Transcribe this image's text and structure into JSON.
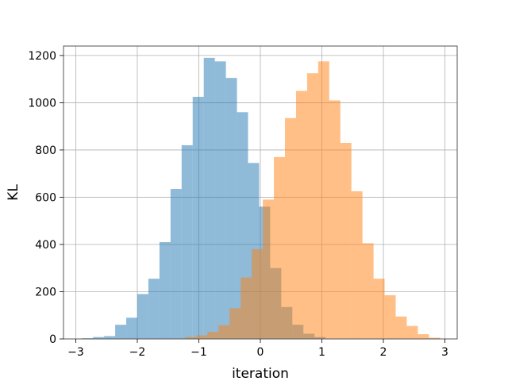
{
  "chart_data": {
    "type": "bar",
    "title": "",
    "xlabel": "iteration",
    "ylabel": "KL",
    "xlim": [
      -3.2,
      3.2
    ],
    "ylim": [
      0,
      1240
    ],
    "grid": true,
    "xticks": [
      -3,
      -2,
      -1,
      0,
      1,
      2,
      3
    ],
    "xtick_labels": [
      "−3",
      "−2",
      "−1",
      "0",
      "1",
      "2",
      "3"
    ],
    "yticks": [
      0,
      200,
      400,
      600,
      800,
      1000,
      1200
    ],
    "ytick_labels": [
      "0",
      "200",
      "400",
      "600",
      "800",
      "1000",
      "1200"
    ],
    "series": [
      {
        "color": "#1f77b4",
        "alpha": 0.5,
        "bin_edges": [
          -2.9,
          -2.72,
          -2.54,
          -2.36,
          -2.18,
          -2.0,
          -1.82,
          -1.64,
          -1.46,
          -1.28,
          -1.1,
          -0.92,
          -0.74,
          -0.56,
          -0.38,
          -0.2,
          -0.02,
          0.16,
          0.34,
          0.52,
          0.7,
          0.88,
          1.06
        ],
        "counts": [
          3,
          8,
          12,
          60,
          90,
          190,
          255,
          410,
          635,
          820,
          1025,
          1190,
          1175,
          1105,
          960,
          745,
          560,
          300,
          135,
          60,
          22,
          8
        ]
      },
      {
        "color": "#ff7f0e",
        "alpha": 0.5,
        "bin_edges": [
          -1.22,
          -1.04,
          -0.86,
          -0.68,
          -0.5,
          -0.32,
          -0.14,
          0.04,
          0.22,
          0.4,
          0.58,
          0.76,
          0.94,
          1.12,
          1.3,
          1.48,
          1.66,
          1.84,
          2.02,
          2.2,
          2.38,
          2.56,
          2.74,
          2.92
        ],
        "counts": [
          8,
          15,
          30,
          58,
          130,
          260,
          380,
          590,
          770,
          935,
          1050,
          1125,
          1175,
          1010,
          830,
          625,
          405,
          255,
          185,
          95,
          55,
          20,
          5
        ]
      }
    ]
  }
}
